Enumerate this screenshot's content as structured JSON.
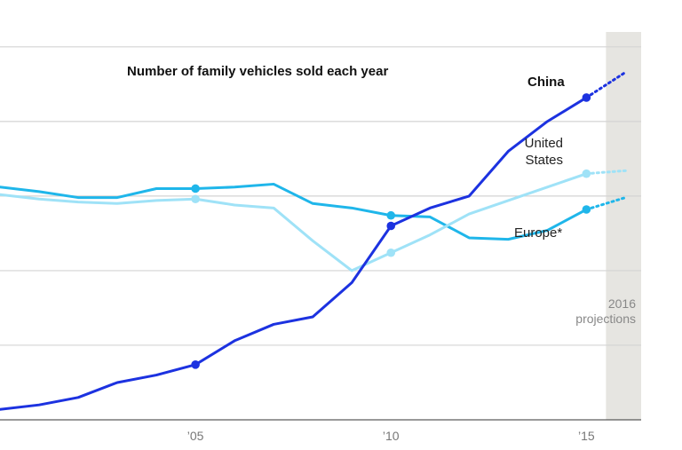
{
  "chart_data": {
    "type": "line",
    "title": "Number of family vehicles sold each year",
    "x_range": [
      2000,
      2016.4
    ],
    "y_range": [
      0,
      26
    ],
    "gridlines_y": [
      5,
      10,
      15,
      20,
      25
    ],
    "x_ticks": [
      {
        "value": 2005,
        "label": "’05"
      },
      {
        "value": 2010,
        "label": "’10"
      },
      {
        "value": 2015,
        "label": "’15"
      }
    ],
    "projection": {
      "from": 2015.5,
      "to": 2016.4,
      "label_line1": "2016",
      "label_line2": "projections"
    },
    "series": [
      {
        "name": "Europe*",
        "color": "#1fb6ea",
        "x": [
          2000,
          2001,
          2002,
          2003,
          2004,
          2005,
          2006,
          2007,
          2008,
          2009,
          2010,
          2011,
          2012,
          2013,
          2014,
          2015
        ],
        "values": [
          15.6,
          15.3,
          14.9,
          14.9,
          15.5,
          15.5,
          15.6,
          15.8,
          14.5,
          14.2,
          13.7,
          13.6,
          12.2,
          12.1,
          12.7,
          14.1
        ],
        "markers": [
          2005,
          2010,
          2015
        ],
        "projected": {
          "x": 2016,
          "value": 14.9
        }
      },
      {
        "name": "United States",
        "color": "#9fe2f7",
        "x": [
          2000,
          2001,
          2002,
          2003,
          2004,
          2005,
          2006,
          2007,
          2008,
          2009,
          2010,
          2011,
          2012,
          2013,
          2014,
          2015
        ],
        "values": [
          15.1,
          14.8,
          14.6,
          14.5,
          14.7,
          14.8,
          14.4,
          14.2,
          12.0,
          10.0,
          11.2,
          12.4,
          13.8,
          14.7,
          15.6,
          16.5
        ],
        "markers": [
          2005,
          2010,
          2015
        ],
        "projected": {
          "x": 2016,
          "value": 16.7
        }
      },
      {
        "name": "China",
        "color": "#1c32e0",
        "x": [
          2000,
          2001,
          2002,
          2003,
          2004,
          2005,
          2006,
          2007,
          2008,
          2009,
          2010,
          2011,
          2012,
          2013,
          2014,
          2015
        ],
        "values": [
          0.7,
          1.0,
          1.5,
          2.5,
          3.0,
          3.7,
          5.3,
          6.4,
          6.9,
          9.2,
          13.0,
          14.2,
          15.0,
          18.0,
          20.0,
          21.6
        ],
        "markers": [
          2005,
          2010,
          2015
        ],
        "projected": {
          "x": 2016,
          "value": 23.3
        }
      }
    ],
    "labels": {
      "china": "China",
      "us_line1": "United",
      "us_line2": "States",
      "europe": "Europe*"
    }
  }
}
